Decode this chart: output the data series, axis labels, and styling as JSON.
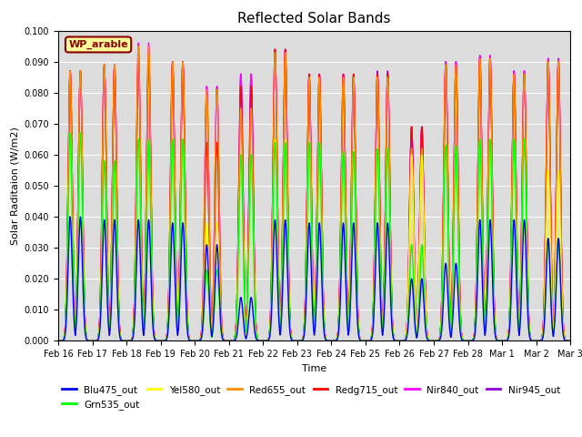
{
  "title": "Reflected Solar Bands",
  "xlabel": "Time",
  "ylabel": "Solar Raditaion (W/m2)",
  "ylim": [
    0,
    0.1
  ],
  "yticks": [
    0.0,
    0.01,
    0.02,
    0.03,
    0.04,
    0.05,
    0.06,
    0.07,
    0.08,
    0.09,
    0.1
  ],
  "background_color": "#dcdcdc",
  "annotation_text": "WP_arable",
  "annotation_color": "#8B0000",
  "annotation_bg": "#FFFF99",
  "series": {
    "Blu475_out": {
      "color": "#0000FF",
      "lw": 1.0
    },
    "Grn535_out": {
      "color": "#00FF00",
      "lw": 1.0
    },
    "Yel580_out": {
      "color": "#FFFF00",
      "lw": 1.0
    },
    "Red655_out": {
      "color": "#FF8C00",
      "lw": 1.0
    },
    "Redg715_out": {
      "color": "#FF0000",
      "lw": 1.0
    },
    "Nir840_out": {
      "color": "#FF00FF",
      "lw": 1.0
    },
    "Nir945_out": {
      "color": "#9400D3",
      "lw": 1.0
    }
  },
  "n_days": 15,
  "pts_per_day": 200,
  "peaks_nir840": [
    0.087,
    0.089,
    0.096,
    0.09,
    0.082,
    0.086,
    0.094,
    0.086,
    0.086,
    0.086,
    0.069,
    0.09,
    0.092,
    0.087,
    0.091
  ],
  "peaks_nir945": [
    0.087,
    0.089,
    0.092,
    0.09,
    0.082,
    0.086,
    0.094,
    0.086,
    0.086,
    0.087,
    0.069,
    0.09,
    0.092,
    0.087,
    0.091
  ],
  "peaks_redg": [
    0.087,
    0.089,
    0.092,
    0.09,
    0.064,
    0.082,
    0.094,
    0.086,
    0.086,
    0.086,
    0.069,
    0.089,
    0.091,
    0.086,
    0.09
  ],
  "peaks_red": [
    0.087,
    0.089,
    0.095,
    0.09,
    0.081,
    0.075,
    0.093,
    0.085,
    0.085,
    0.085,
    0.062,
    0.089,
    0.091,
    0.086,
    0.09
  ],
  "peaks_yel": [
    0.067,
    0.058,
    0.065,
    0.065,
    0.038,
    0.06,
    0.065,
    0.064,
    0.061,
    0.062,
    0.06,
    0.063,
    0.065,
    0.065,
    0.055
  ],
  "peaks_grn": [
    0.067,
    0.058,
    0.065,
    0.065,
    0.023,
    0.06,
    0.064,
    0.064,
    0.061,
    0.062,
    0.031,
    0.063,
    0.065,
    0.065,
    0.033
  ],
  "peaks_blu": [
    0.04,
    0.039,
    0.039,
    0.038,
    0.031,
    0.014,
    0.039,
    0.038,
    0.038,
    0.038,
    0.02,
    0.025,
    0.039,
    0.039,
    0.033
  ],
  "xtick_labels": [
    "Feb 16",
    "Feb 17",
    "Feb 18",
    "Feb 19",
    "Feb 20",
    "Feb 21",
    "Feb 22",
    "Feb 23",
    "Feb 24",
    "Feb 25",
    "Feb 26",
    "Feb 27",
    "Feb 28",
    "Mar 1",
    "Mar 2",
    "Mar 3"
  ]
}
